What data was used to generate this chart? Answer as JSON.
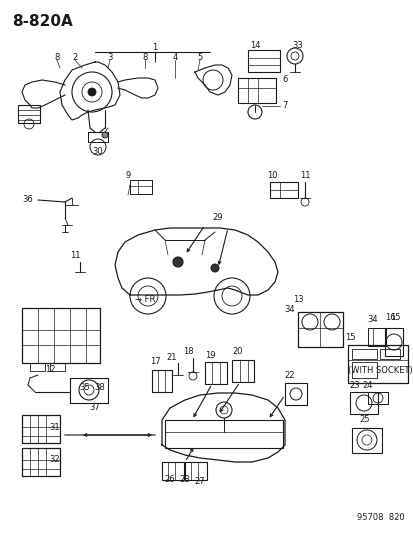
{
  "title": "8-820A",
  "bg_color": "#ffffff",
  "line_color": "#1a1a1a",
  "text_color": "#1a1a1a",
  "footer": "95708  820",
  "figsize": [
    4.14,
    5.33
  ],
  "dpi": 100,
  "with_socket_text": "(WITH SOCKET)",
  "fr_text": "→ FR"
}
